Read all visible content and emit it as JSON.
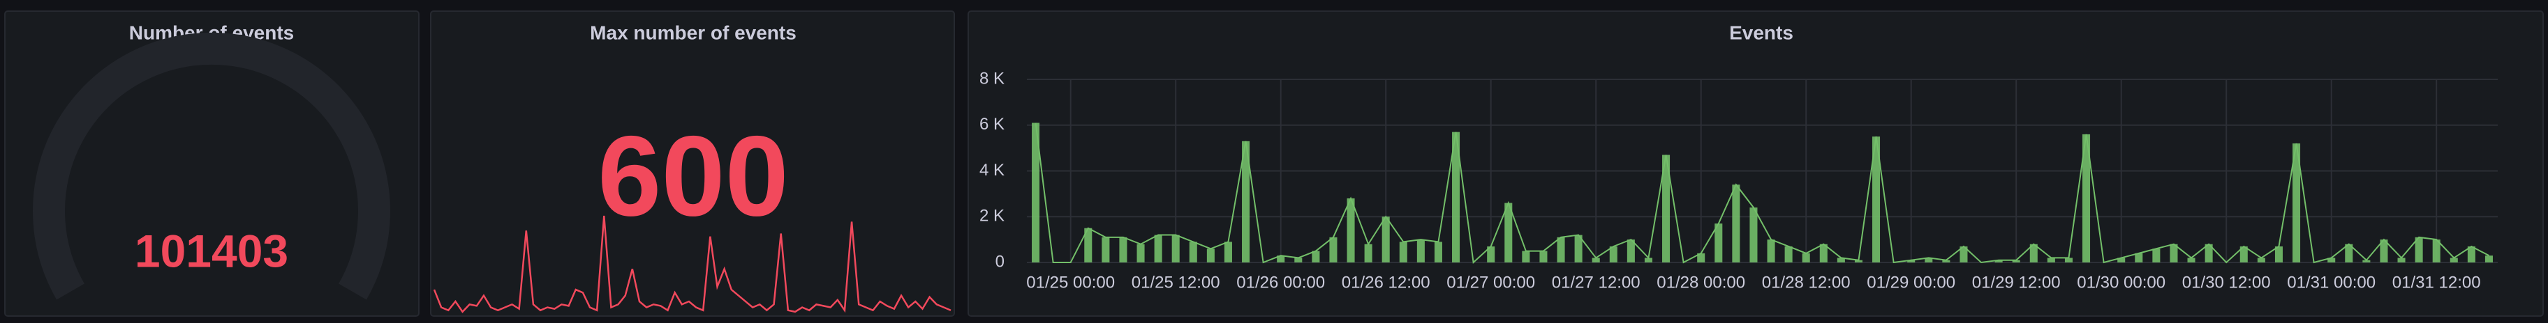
{
  "panels": [
    {
      "title": "Number of events",
      "type": "gauge",
      "value": 101403,
      "color": "#f2495c"
    },
    {
      "title": "Max number of events",
      "type": "stat",
      "value": 600,
      "color": "#f2495c",
      "sparkline": [
        80,
        20,
        10,
        40,
        5,
        30,
        25,
        60,
        20,
        10,
        20,
        30,
        15,
        280,
        30,
        10,
        20,
        15,
        30,
        25,
        80,
        70,
        20,
        10,
        330,
        20,
        30,
        60,
        150,
        40,
        20,
        30,
        25,
        10,
        70,
        30,
        40,
        20,
        10,
        260,
        90,
        150,
        80,
        60,
        40,
        20,
        30,
        10,
        30,
        270,
        10,
        5,
        20,
        10,
        30,
        25,
        20,
        45,
        10,
        310,
        30,
        20,
        10,
        40,
        25,
        15,
        60,
        20,
        40,
        15,
        55,
        30,
        20,
        10
      ]
    },
    {
      "chart_data": {
        "type": "bar",
        "title": "Events",
        "color": "#73bf69",
        "categories": [
          null,
          null,
          "01/25 00:00",
          null,
          null,
          null,
          null,
          null,
          "01/25 12:00",
          null,
          null,
          null,
          null,
          null,
          "01/26 00:00",
          null,
          null,
          null,
          null,
          null,
          "01/26 12:00",
          null,
          null,
          null,
          null,
          null,
          "01/27 00:00",
          null,
          null,
          null,
          null,
          null,
          "01/27 12:00",
          null,
          null,
          null,
          null,
          null,
          "01/28 00:00",
          null,
          null,
          null,
          null,
          null,
          "01/28 12:00",
          null,
          null,
          null,
          null,
          null,
          "01/29 00:00",
          null,
          null,
          null,
          null,
          null,
          "01/29 12:00",
          null,
          null,
          null,
          null,
          null,
          "01/30 00:00",
          null,
          null,
          null,
          null,
          null,
          "01/30 12:00",
          null,
          null,
          null,
          null,
          null,
          "01/31 00:00",
          null,
          null,
          null,
          null,
          null,
          "01/31 12:00",
          null,
          null,
          null
        ],
        "values": [
          6100,
          0,
          0,
          1500,
          1100,
          1100,
          800,
          1200,
          1200,
          900,
          600,
          900,
          5300,
          0,
          300,
          200,
          500,
          1100,
          2800,
          800,
          2000,
          900,
          1000,
          900,
          5700,
          0,
          700,
          2600,
          500,
          500,
          1100,
          1200,
          200,
          700,
          1000,
          200,
          4700,
          0,
          400,
          1700,
          3400,
          2400,
          1000,
          700,
          400,
          800,
          200,
          100,
          5500,
          0,
          100,
          200,
          100,
          700,
          0,
          100,
          100,
          800,
          200,
          200,
          5600,
          0,
          200,
          400,
          600,
          800,
          200,
          800,
          0,
          700,
          200,
          700,
          5200,
          0,
          200,
          800,
          100,
          1000,
          200,
          1100,
          1000,
          200,
          700,
          300
        ],
        "ylim": [
          0,
          8000
        ],
        "yticks": [
          0,
          {
            "value": 2000,
            "label": "2 K"
          },
          {
            "value": 4000,
            "label": "4 K"
          },
          {
            "value": 6000,
            "label": "6 K"
          },
          {
            "value": 8000,
            "label": "8 K"
          }
        ],
        "grid": true
      }
    }
  ]
}
